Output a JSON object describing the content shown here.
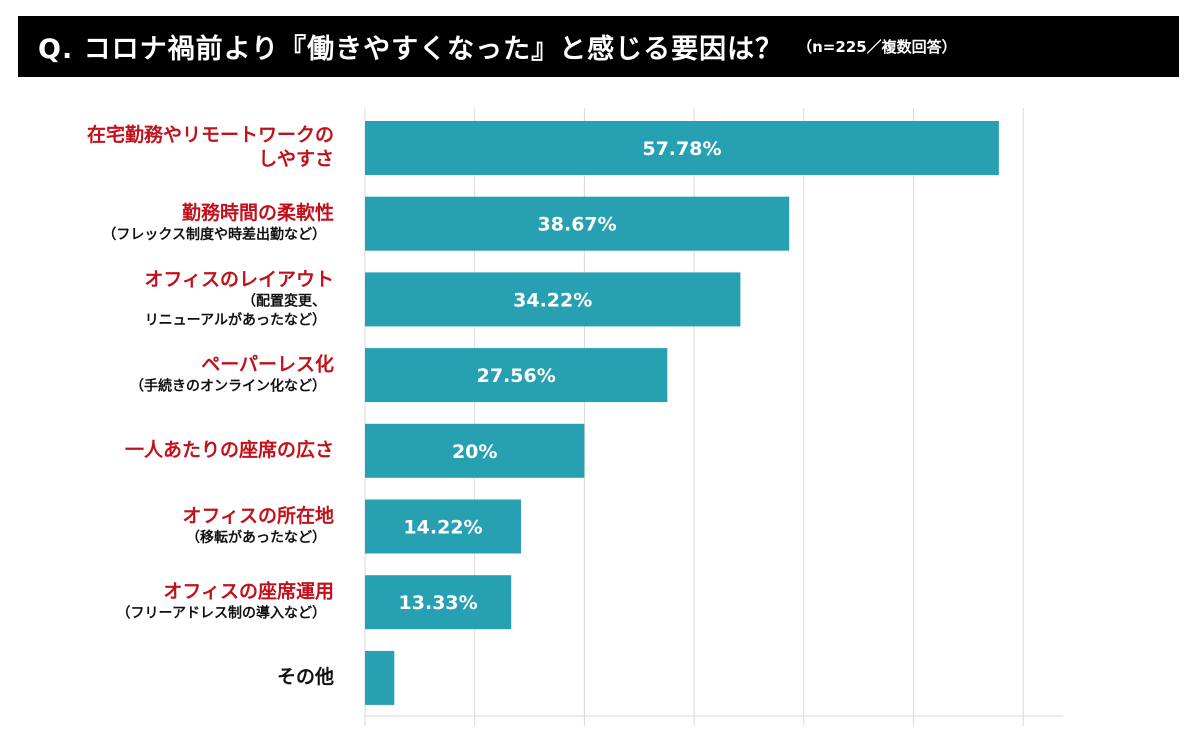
{
  "title": {
    "main": "Q. コロナ禍前より『働きやすくなった』と感じる要因は？",
    "note": "（n=225／複数回答）"
  },
  "colors": {
    "bar": "#27a0b2",
    "category_text": "#c1121c",
    "other_text": "#111111",
    "title_bg": "#000000",
    "title_text": "#ffffff",
    "value_text": "#ffffff",
    "grid": "#d9d9d9"
  },
  "chart_data": {
    "type": "bar",
    "orientation": "horizontal",
    "grid": true,
    "xlim": [
      0,
      60
    ],
    "categories": [
      {
        "lines": [
          "在宅勤務やリモートワークの",
          "しやすさ"
        ],
        "sub": [],
        "color": "red"
      },
      {
        "lines": [
          "勤務時間の柔軟性"
        ],
        "sub": [
          "（フレックス制度や時差出勤など）"
        ],
        "color": "red"
      },
      {
        "lines": [
          "オフィスのレイアウト"
        ],
        "sub": [
          "（配置変更、",
          "リニューアルがあったなど）"
        ],
        "color": "red"
      },
      {
        "lines": [
          "ペーパーレス化"
        ],
        "sub": [
          "（手続きのオンライン化など）"
        ],
        "color": "red"
      },
      {
        "lines": [
          "一人あたりの座席の広さ"
        ],
        "sub": [],
        "color": "red"
      },
      {
        "lines": [
          "オフィスの所在地"
        ],
        "sub": [
          "（移転があったなど）"
        ],
        "color": "red"
      },
      {
        "lines": [
          "オフィスの座席運用"
        ],
        "sub": [
          "（フリーアドレス制の導入など）"
        ],
        "color": "red"
      },
      {
        "lines": [
          "その他"
        ],
        "sub": [],
        "color": "black"
      }
    ],
    "values": [
      57.78,
      38.67,
      34.22,
      27.56,
      20,
      14.22,
      13.33,
      2.67
    ],
    "value_labels": [
      "57.78%",
      "38.67%",
      "34.22%",
      "27.56%",
      "20%",
      "14.22%",
      "13.33%",
      ""
    ]
  }
}
